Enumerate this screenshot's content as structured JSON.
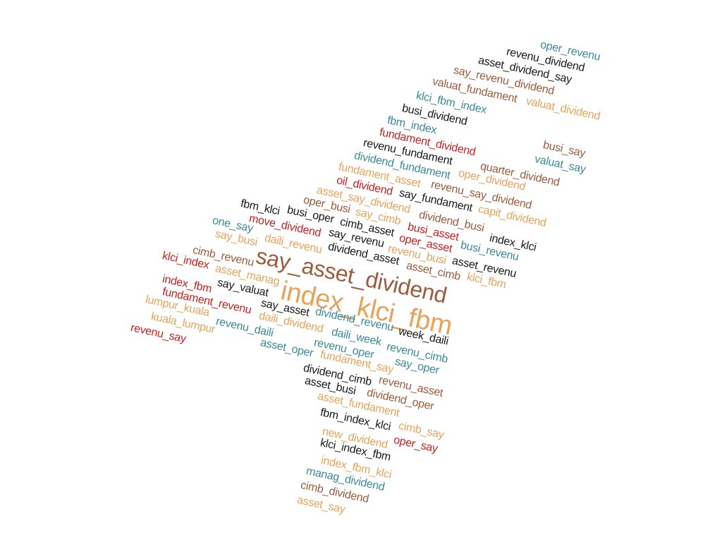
{
  "palette": {
    "teal": "#3b8a9c",
    "black": "#1a1a1a",
    "brown": "#9e5b3c",
    "orange": "#e8a35a",
    "red": "#cc1f1f"
  },
  "words": [
    {
      "text": "oper_revenu",
      "color": "teal"
    },
    {
      "text": "revenu_dividend",
      "color": "black"
    },
    {
      "text": "asset_dividend_say",
      "color": "black"
    },
    {
      "text": "say_revenu_dividend",
      "color": "brown"
    },
    {
      "text": "valuat_fundament",
      "color": "brown"
    },
    {
      "text": "valuat_dividend",
      "color": "orange"
    },
    {
      "text": "klci_fbm_index",
      "color": "teal"
    },
    {
      "text": "busi_dividend",
      "color": "black"
    },
    {
      "text": "fbm_index",
      "color": "teal"
    },
    {
      "text": "fundament_dividend",
      "color": "red"
    },
    {
      "text": "busi_say",
      "color": "brown"
    },
    {
      "text": "revenu_fundament",
      "color": "black"
    },
    {
      "text": "valuat_say",
      "color": "teal"
    },
    {
      "text": "dividend_fundament",
      "color": "teal"
    },
    {
      "text": "quarter_dividend",
      "color": "brown"
    },
    {
      "text": "fundament_asset",
      "color": "orange"
    },
    {
      "text": "oper_dividend",
      "color": "orange"
    },
    {
      "text": "oil_dividend",
      "color": "red"
    },
    {
      "text": "revenu_say_dividend",
      "color": "brown"
    },
    {
      "text": "asset_say_dividend",
      "color": "orange"
    },
    {
      "text": "say_fundament",
      "color": "black"
    },
    {
      "text": "oper_busi",
      "color": "brown"
    },
    {
      "text": "capit_dividend",
      "color": "orange"
    },
    {
      "text": "fbm_klci",
      "color": "black"
    },
    {
      "text": "busi_oper",
      "color": "black"
    },
    {
      "text": "say_cimb",
      "color": "orange"
    },
    {
      "text": "dividend_busi",
      "color": "brown"
    },
    {
      "text": "one_say",
      "color": "teal"
    },
    {
      "text": "move_dividend",
      "color": "red"
    },
    {
      "text": "cimb_asset",
      "color": "black"
    },
    {
      "text": "busi_asset",
      "color": "red"
    },
    {
      "text": "index_klci",
      "color": "black"
    },
    {
      "text": "say_busi",
      "color": "orange"
    },
    {
      "text": "say_revenu",
      "color": "black"
    },
    {
      "text": "oper_asset",
      "color": "red"
    },
    {
      "text": "busi_revenu",
      "color": "teal"
    },
    {
      "text": "daili_revenu",
      "color": "orange"
    },
    {
      "text": "dividend_asset",
      "color": "black"
    },
    {
      "text": "revenu_busi",
      "color": "orange"
    },
    {
      "text": "cimb_revenu",
      "color": "brown"
    },
    {
      "text": "asset_revenu",
      "color": "black"
    },
    {
      "text": "klci_index",
      "color": "red"
    },
    {
      "text": "say_asset_dividend",
      "color": "brown"
    },
    {
      "text": "asset_manag",
      "color": "orange"
    },
    {
      "text": "asset_cimb",
      "color": "brown"
    },
    {
      "text": "klci_fbm",
      "color": "orange"
    },
    {
      "text": "say_valuat",
      "color": "black"
    },
    {
      "text": "index_fbm",
      "color": "red"
    },
    {
      "text": "index_klci_fbm",
      "color": "orange"
    },
    {
      "text": "fundament_revenu",
      "color": "red"
    },
    {
      "text": "lumpur_kuala",
      "color": "orange"
    },
    {
      "text": "say_asset",
      "color": "black"
    },
    {
      "text": "dividend_revenu",
      "color": "teal"
    },
    {
      "text": "kuala_lumpur",
      "color": "orange"
    },
    {
      "text": "daili_dividend",
      "color": "orange"
    },
    {
      "text": "revenu_daili",
      "color": "teal"
    },
    {
      "text": "week_daili",
      "color": "black"
    },
    {
      "text": "revenu_say",
      "color": "red"
    },
    {
      "text": "daili_week",
      "color": "teal"
    },
    {
      "text": "revenu_cimb",
      "color": "teal"
    },
    {
      "text": "asset_oper",
      "color": "teal"
    },
    {
      "text": "revenu_oper",
      "color": "teal"
    },
    {
      "text": "fundament_say",
      "color": "orange"
    },
    {
      "text": "say_oper",
      "color": "teal"
    },
    {
      "text": "dividend_cimb",
      "color": "black"
    },
    {
      "text": "revenu_asset",
      "color": "brown"
    },
    {
      "text": "asset_busi",
      "color": "black"
    },
    {
      "text": "dividend_oper",
      "color": "brown"
    },
    {
      "text": "asset_fundament",
      "color": "orange"
    },
    {
      "text": "fbm_index_klci",
      "color": "black"
    },
    {
      "text": "cimb_say",
      "color": "orange"
    },
    {
      "text": "new_dividend",
      "color": "orange"
    },
    {
      "text": "oper_say",
      "color": "red"
    },
    {
      "text": "klci_index_fbm",
      "color": "black"
    },
    {
      "text": "index_fbm_klci",
      "color": "orange"
    },
    {
      "text": "manag_dividend",
      "color": "teal"
    },
    {
      "text": "cimb_dividend",
      "color": "brown"
    },
    {
      "text": "asset_say",
      "color": "orange"
    }
  ]
}
